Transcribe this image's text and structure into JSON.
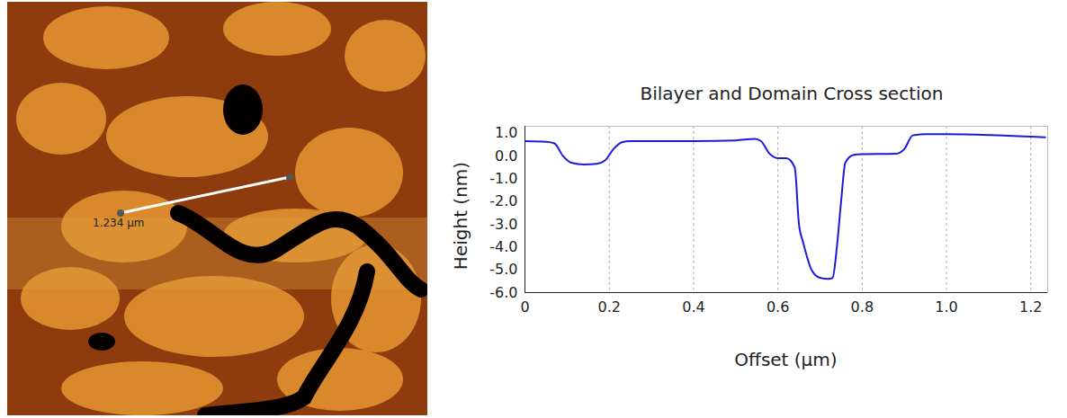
{
  "image": {
    "scale_label": "1.234 µm"
  },
  "chart_data": {
    "type": "line",
    "title": "Bilayer and Domain Cross section",
    "x_label": "Offset (µm)",
    "y_label": "Height (nm)",
    "color": "#1a1adb",
    "grid": "x",
    "xlim": [
      0,
      1.24
    ],
    "ylim": [
      -6,
      1.3
    ],
    "xticks": [
      0,
      0.2,
      0.4,
      0.6,
      0.8,
      {
        "value": 1,
        "label": "1.0"
      },
      1.2
    ],
    "yticks": [
      {
        "value": 1,
        "label": "1.0"
      },
      {
        "value": 0,
        "label": "0.0"
      },
      {
        "value": -1,
        "label": "-1.0"
      },
      {
        "value": -2,
        "label": "-2.0"
      },
      {
        "value": -3,
        "label": "-3.0"
      },
      {
        "value": -4,
        "label": "-4.0"
      },
      {
        "value": -5,
        "label": "-5.0"
      },
      {
        "value": -6,
        "label": "-6.0"
      }
    ],
    "x": [
      0,
      0.05,
      0.07,
      0.09,
      0.11,
      0.14,
      0.17,
      0.19,
      0.21,
      0.23,
      0.25,
      0.4,
      0.5,
      0.545,
      0.56,
      0.58,
      0.6,
      0.62,
      0.64,
      0.65,
      0.66,
      0.68,
      0.7,
      0.72,
      0.73,
      0.74,
      0.75,
      0.76,
      0.78,
      0.8,
      0.88,
      0.9,
      0.92,
      0.95,
      1.0,
      1.1,
      1.2,
      1.234
    ],
    "values": [
      0.65,
      0.62,
      0.55,
      0.0,
      -0.3,
      -0.38,
      -0.35,
      -0.2,
      0.3,
      0.6,
      0.65,
      0.65,
      0.68,
      0.75,
      0.65,
      0.1,
      -0.1,
      -0.1,
      -0.5,
      -3.0,
      -3.8,
      -5.0,
      -5.35,
      -5.4,
      -5.35,
      -4.0,
      -2.0,
      -0.3,
      0.05,
      0.08,
      0.1,
      0.3,
      0.9,
      0.95,
      0.95,
      0.92,
      0.85,
      0.82
    ]
  }
}
